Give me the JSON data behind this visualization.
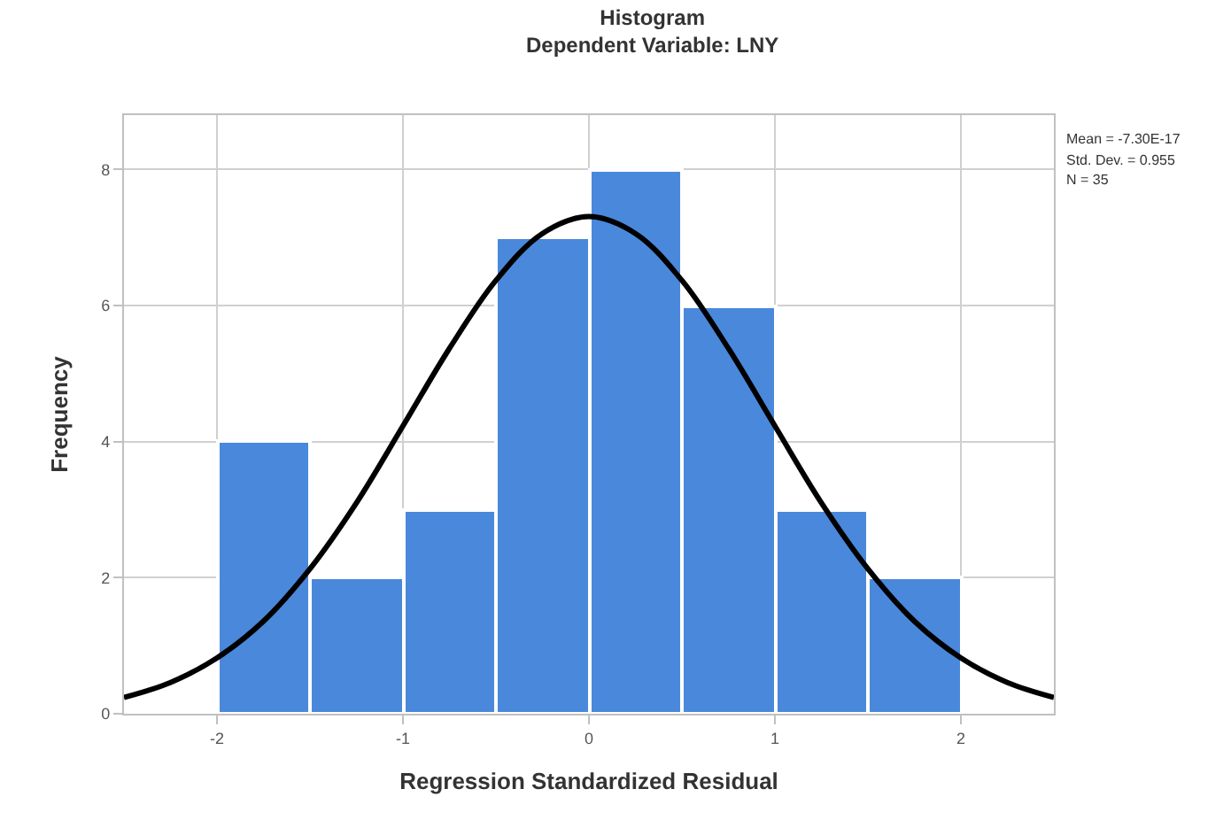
{
  "chart_data": {
    "type": "histogram",
    "title": "Histogram",
    "subtitle": "Dependent Variable: LNY",
    "xlabel": "Regression Standardized Residual",
    "ylabel": "Frequency",
    "bins": [
      -2,
      -1.5,
      -1,
      -0.5,
      0,
      0.5,
      1,
      1.5,
      2
    ],
    "values": [
      4,
      2,
      3,
      7,
      8,
      6,
      3,
      2
    ],
    "color": "#4a88dc",
    "series": [
      {
        "type": "line",
        "color": "#000000",
        "x": [
          -2.5,
          -2.25,
          -2,
          -1.75,
          -1.5,
          -1.25,
          -1,
          -0.75,
          -0.5,
          -0.25,
          0,
          0.25,
          0.5,
          0.75,
          1,
          1.25,
          1.5,
          1.75,
          2,
          2.25,
          2.5
        ],
        "values": [
          0.24,
          0.46,
          0.82,
          1.36,
          2.13,
          3.1,
          4.23,
          5.37,
          6.37,
          7.06,
          7.31,
          7.06,
          6.37,
          5.37,
          4.23,
          3.1,
          2.13,
          1.36,
          0.82,
          0.46,
          0.24
        ]
      }
    ],
    "xlim": [
      -2.5,
      2.5
    ],
    "xticks": [
      -2,
      -1,
      0,
      1,
      2
    ],
    "ylim": [
      0,
      8.8
    ],
    "yticks": [
      0,
      2,
      4,
      6,
      8
    ],
    "grid": true,
    "annotations": [
      "Mean = -7.30E-17",
      "Std. Dev. = 0.955",
      "N = 35"
    ]
  }
}
